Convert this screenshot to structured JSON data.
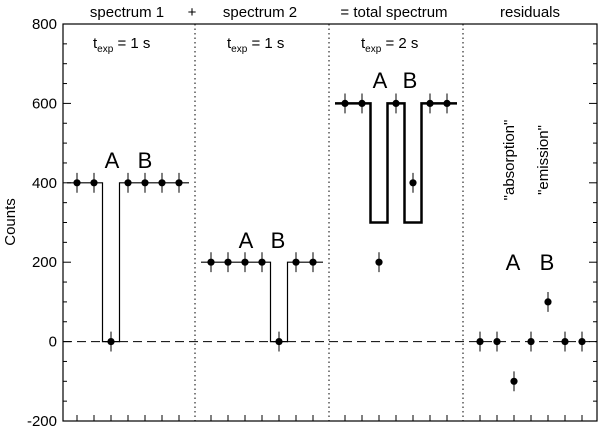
{
  "chart_data": {
    "type": "scatter",
    "ylabel": "Counts",
    "ylim": [
      -200,
      800
    ],
    "yticks": [
      -200,
      0,
      200,
      400,
      600,
      800
    ],
    "panel_headers": [
      "spectrum 1",
      "+",
      "spectrum 2",
      "= total spectrum",
      "residuals"
    ],
    "exposures": [
      {
        "label": "t",
        "sub": "exp",
        "rest": " = 1 s"
      },
      {
        "label": "t",
        "sub": "exp",
        "rest": " = 1 s"
      },
      {
        "label": "t",
        "sub": "exp",
        "rest": " = 2 s"
      }
    ],
    "line_labels": [
      "A",
      "B"
    ],
    "residual_labels": [
      "\"absorption\"",
      "\"emission\""
    ],
    "panels": [
      {
        "name": "spectrum 1",
        "x": [
          1,
          2,
          3,
          4,
          5,
          6,
          7
        ],
        "points": [
          400,
          400,
          0,
          400,
          400,
          400,
          400
        ],
        "model": [
          400,
          400,
          0,
          400,
          400,
          400,
          400
        ]
      },
      {
        "name": "spectrum 2",
        "x": [
          1,
          2,
          3,
          4,
          5,
          6,
          7
        ],
        "points": [
          200,
          200,
          200,
          200,
          0,
          200,
          200
        ],
        "model": [
          200,
          200,
          200,
          200,
          0,
          200,
          200
        ]
      },
      {
        "name": "total spectrum",
        "x": [
          1,
          2,
          3,
          4,
          5,
          6,
          7
        ],
        "points": [
          600,
          600,
          200,
          600,
          400,
          600,
          600
        ],
        "model": [
          600,
          600,
          300,
          600,
          300,
          600,
          600
        ]
      },
      {
        "name": "residuals",
        "x": [
          1,
          2,
          3,
          4,
          5,
          6,
          7
        ],
        "points": [
          0,
          0,
          -100,
          0,
          100,
          0,
          0
        ]
      }
    ],
    "errorbar": 25,
    "zero_line": "dashed",
    "panel_separators": "dotted"
  }
}
